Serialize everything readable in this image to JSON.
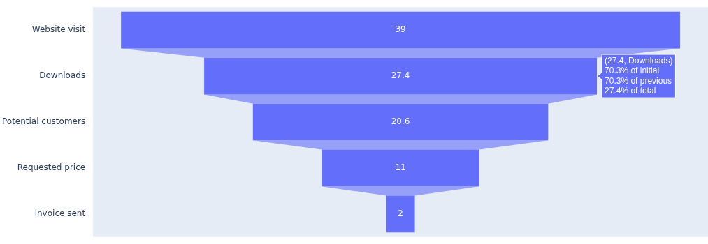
{
  "chart_data": {
    "type": "other",
    "categories": [
      "Website visit",
      "Downloads",
      "Potential customers",
      "Requested price",
      "invoice sent"
    ],
    "values": [
      39,
      27.4,
      20.6,
      11,
      2
    ],
    "color": "#636efa",
    "data_labels": true,
    "annotations": [
      {
        "text": "(27.4, Downloads)\n70.3% of initial\n70.3% of previous\n27.4% of total",
        "y": "Downloads"
      }
    ]
  }
}
